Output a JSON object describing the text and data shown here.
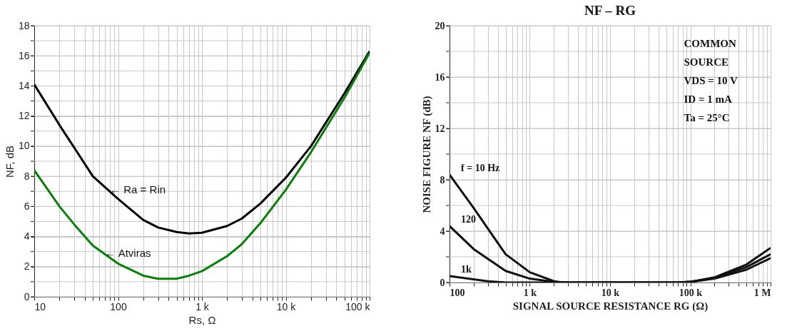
{
  "chart_data": [
    {
      "type": "line",
      "xlabel": "Rs, Ω",
      "ylabel": "NF, dB",
      "log": "x",
      "grid": true,
      "xlim": [
        10,
        100000
      ],
      "ylim": [
        0,
        18
      ],
      "xticks": [
        10,
        {
          "value": 20,
          "label": null
        },
        {
          "value": 30,
          "label": null
        },
        {
          "value": 40,
          "label": null
        },
        {
          "value": 50,
          "label": null
        },
        {
          "value": 60,
          "label": null
        },
        {
          "value": 70,
          "label": null
        },
        {
          "value": 80,
          "label": null
        },
        {
          "value": 90,
          "label": null
        },
        100,
        {
          "value": 200,
          "label": null
        },
        {
          "value": 300,
          "label": null
        },
        {
          "value": 400,
          "label": null
        },
        {
          "value": 500,
          "label": null
        },
        {
          "value": 600,
          "label": null
        },
        {
          "value": 700,
          "label": null
        },
        {
          "value": 800,
          "label": null
        },
        {
          "value": 900,
          "label": null
        },
        {
          "value": 1000,
          "label": "1 k"
        },
        {
          "value": 2000,
          "label": null
        },
        {
          "value": 3000,
          "label": null
        },
        {
          "value": 4000,
          "label": null
        },
        {
          "value": 5000,
          "label": null
        },
        {
          "value": 6000,
          "label": null
        },
        {
          "value": 7000,
          "label": null
        },
        {
          "value": 8000,
          "label": null
        },
        {
          "value": 9000,
          "label": null
        },
        {
          "value": 10000,
          "label": "10 k"
        },
        {
          "value": 20000,
          "label": null
        },
        {
          "value": 30000,
          "label": null
        },
        {
          "value": 40000,
          "label": null
        },
        {
          "value": 50000,
          "label": null
        },
        {
          "value": 60000,
          "label": null
        },
        {
          "value": 70000,
          "label": null
        },
        {
          "value": 80000,
          "label": null
        },
        {
          "value": 90000,
          "label": null
        },
        {
          "value": 100000,
          "label": "100 k"
        }
      ],
      "yticks": [
        0,
        {
          "value": 1,
          "label": null
        },
        2,
        {
          "value": 3,
          "label": null
        },
        4,
        {
          "value": 5,
          "label": null
        },
        6,
        {
          "value": 7,
          "label": null
        },
        8,
        {
          "value": 9,
          "label": null
        },
        10,
        {
          "value": 11,
          "label": null
        },
        12,
        {
          "value": 13,
          "label": null
        },
        14,
        {
          "value": 15,
          "label": null
        },
        16,
        {
          "value": 17,
          "label": null
        },
        18
      ],
      "x": [
        10,
        20,
        30,
        50,
        100,
        200,
        300,
        500,
        700,
        1000,
        2000,
        3000,
        5000,
        10000,
        20000,
        50000,
        100000
      ],
      "series": [
        {
          "color": "#000000",
          "values": [
            14.1,
            11.4,
            9.9,
            8.0,
            6.5,
            5.1,
            4.6,
            4.3,
            4.2,
            4.25,
            4.7,
            5.2,
            6.2,
            7.9,
            10.0,
            13.5,
            16.3
          ]
        },
        {
          "color": "#0a7d0a",
          "values": [
            8.4,
            6.0,
            4.8,
            3.4,
            2.2,
            1.4,
            1.2,
            1.2,
            1.4,
            1.7,
            2.7,
            3.5,
            4.9,
            7.1,
            9.6,
            13.2,
            16.2
          ]
        }
      ],
      "annotations": [
        {
          "text": "← Ra = Rin",
          "x": 80,
          "y": 7.1
        },
        {
          "text": "← Atviras",
          "x": 70,
          "y": 2.9
        }
      ]
    },
    {
      "type": "line",
      "title": "NF – RG",
      "xlabel": "SIGNAL SOURCE RESISTANCE RG (Ω)",
      "ylabel": "NOISE FIGURE NF (dB)",
      "log": "x",
      "grid": true,
      "xlim": [
        100,
        1000000
      ],
      "ylim": [
        0,
        20
      ],
      "xticks": [
        100,
        {
          "value": 200,
          "label": null
        },
        {
          "value": 300,
          "label": null
        },
        {
          "value": 400,
          "label": null
        },
        {
          "value": 500,
          "label": null
        },
        {
          "value": 600,
          "label": null
        },
        {
          "value": 700,
          "label": null
        },
        {
          "value": 800,
          "label": null
        },
        {
          "value": 900,
          "label": null
        },
        {
          "value": 1000,
          "label": "1 k"
        },
        {
          "value": 2000,
          "label": null
        },
        {
          "value": 3000,
          "label": null
        },
        {
          "value": 4000,
          "label": null
        },
        {
          "value": 5000,
          "label": null
        },
        {
          "value": 6000,
          "label": null
        },
        {
          "value": 7000,
          "label": null
        },
        {
          "value": 8000,
          "label": null
        },
        {
          "value": 9000,
          "label": null
        },
        {
          "value": 10000,
          "label": "10 k"
        },
        {
          "value": 20000,
          "label": null
        },
        {
          "value": 30000,
          "label": null
        },
        {
          "value": 40000,
          "label": null
        },
        {
          "value": 50000,
          "label": null
        },
        {
          "value": 60000,
          "label": null
        },
        {
          "value": 70000,
          "label": null
        },
        {
          "value": 80000,
          "label": null
        },
        {
          "value": 90000,
          "label": null
        },
        {
          "value": 100000,
          "label": "100 k"
        },
        {
          "value": 200000,
          "label": null
        },
        {
          "value": 300000,
          "label": null
        },
        {
          "value": 400000,
          "label": null
        },
        {
          "value": 500000,
          "label": null
        },
        {
          "value": 600000,
          "label": null
        },
        {
          "value": 700000,
          "label": null
        },
        {
          "value": 800000,
          "label": null
        },
        {
          "value": 900000,
          "label": null
        },
        {
          "value": 1000000,
          "label": "1 M"
        }
      ],
      "yticks": [
        0,
        {
          "value": 2,
          "label": null
        },
        4,
        {
          "value": 6,
          "label": null
        },
        8,
        {
          "value": 10,
          "label": null
        },
        12,
        {
          "value": 14,
          "label": null
        },
        16,
        {
          "value": 18,
          "label": null
        },
        20
      ],
      "series": [
        {
          "name": "f = 10 Hz",
          "color": "#111111",
          "x": [
            100,
            200,
            300,
            500,
            1000,
            2000,
            2500,
            10000,
            70000,
            100000,
            200000,
            500000,
            1000000
          ],
          "values": [
            8.4,
            5.8,
            4.2,
            2.2,
            0.8,
            0.1,
            0,
            0,
            0,
            0.05,
            0.4,
            1.4,
            2.7
          ]
        },
        {
          "name": "120",
          "color": "#111111",
          "x": [
            100,
            200,
            500,
            1000,
            2000,
            3000,
            10000,
            70000,
            100000,
            200000,
            500000,
            1000000
          ],
          "values": [
            4.4,
            2.6,
            0.9,
            0.3,
            0.05,
            0,
            0,
            0,
            0.05,
            0.35,
            1.2,
            2.2
          ]
        },
        {
          "name": "1k",
          "color": "#111111",
          "x": [
            100,
            300,
            500,
            1000,
            10000,
            70000,
            100000,
            200000,
            500000,
            1000000
          ],
          "values": [
            0.5,
            0.1,
            0,
            0,
            0,
            0,
            0.05,
            0.3,
            1.0,
            1.9
          ]
        }
      ],
      "annotations": [
        "COMMON",
        "SOURCE",
        "VDS = 10 V",
        "ID = 1 mA",
        "Ta = 25°C"
      ]
    }
  ]
}
